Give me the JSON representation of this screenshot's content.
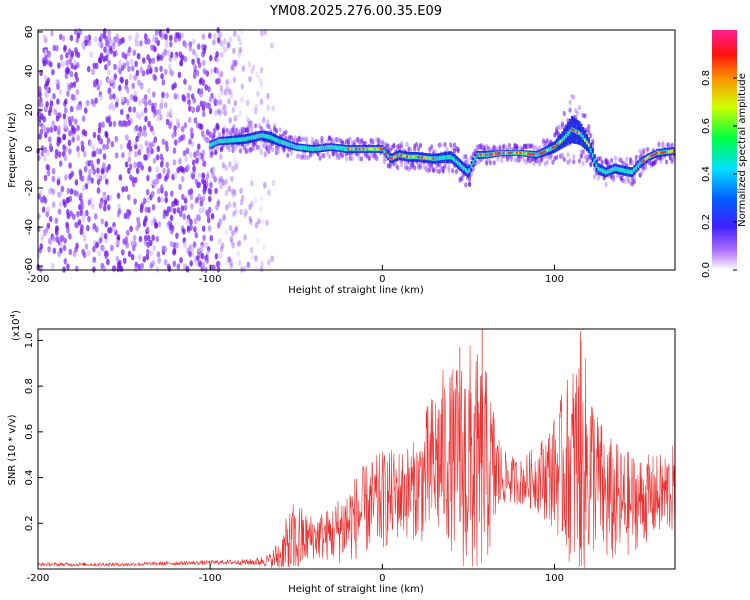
{
  "figure_title": "YM08.2025.276.00.35.E09",
  "chart_data": [
    {
      "type": "heatmap",
      "title": "YM08.2025.276.00.35.E09",
      "xlabel": "Height of straight line (km)",
      "ylabel": "Frequency (Hz)",
      "xlim": [
        -200,
        170
      ],
      "ylim": [
        -62,
        61
      ],
      "xticks": [
        -200,
        -100,
        0,
        100
      ],
      "yticks": [
        60,
        40,
        20,
        0,
        -20,
        -40,
        -60
      ],
      "colorbar": {
        "label": "Normalized spectral amplitude",
        "range": [
          0,
          1
        ],
        "ticks": [
          0.0,
          0.2,
          0.4,
          0.6,
          0.8
        ],
        "colormap": [
          "#ffffff",
          "#8a2be2",
          "#0000ff",
          "#00ffff",
          "#00ff00",
          "#ffff00",
          "#ff0000",
          "#ff1493"
        ]
      },
      "noise_region_x": [
        -200,
        -65
      ],
      "ridge": {
        "x": [
          -100,
          -95,
          -80,
          -70,
          -65,
          -60,
          -50,
          -40,
          -30,
          -20,
          -10,
          0,
          5,
          10,
          15,
          20,
          30,
          40,
          45,
          50,
          55,
          60,
          70,
          80,
          90,
          100,
          105,
          110,
          115,
          120,
          125,
          130,
          135,
          140,
          145,
          150,
          155,
          160,
          170
        ],
        "freq": [
          2,
          4,
          5,
          7,
          6,
          4,
          1,
          0,
          1,
          0,
          0,
          0,
          -5,
          -3,
          -4,
          -4,
          -5,
          -4,
          -8,
          -12,
          -3,
          -3,
          -2,
          -2,
          -3,
          1,
          5,
          10,
          8,
          2,
          -10,
          -12,
          -10,
          -11,
          -12,
          -7,
          -4,
          -2,
          -1
        ],
        "width": [
          4,
          4,
          5,
          5,
          6,
          5,
          4,
          4,
          4,
          4,
          4,
          4,
          5,
          5,
          5,
          5,
          5,
          6,
          6,
          6,
          4,
          4,
          3,
          3,
          4,
          6,
          9,
          14,
          12,
          8,
          6,
          5,
          5,
          5,
          5,
          5,
          4,
          4,
          4
        ]
      }
    },
    {
      "type": "line",
      "xlabel": "Height of straight line (km)",
      "ylabel": "SNR (10 * v/v)",
      "y_multiplier_label": "(x10",
      "y_multiplier_exp": "4",
      "y_multiplier_close": ")",
      "color": "#f03030",
      "xlim": [
        -200,
        170
      ],
      "ylim": [
        0,
        1.05
      ],
      "xticks": [
        -200,
        -100,
        0,
        100
      ],
      "yticks": [
        0.2,
        0.4,
        0.6,
        0.8,
        1.0
      ],
      "series": [
        {
          "name": "SNR",
          "x": [
            -200,
            -150,
            -90,
            -75,
            -65,
            -60,
            -55,
            -50,
            -45,
            -40,
            -30,
            -20,
            -10,
            0,
            10,
            20,
            25,
            30,
            35,
            40,
            45,
            50,
            55,
            60,
            65,
            70,
            80,
            90,
            100,
            105,
            110,
            115,
            120,
            125,
            130,
            140,
            150,
            160,
            170
          ],
          "mean": [
            0.02,
            0.02,
            0.03,
            0.03,
            0.04,
            0.06,
            0.09,
            0.12,
            0.13,
            0.14,
            0.15,
            0.2,
            0.26,
            0.3,
            0.33,
            0.35,
            0.4,
            0.45,
            0.5,
            0.48,
            0.47,
            0.46,
            0.45,
            0.44,
            0.42,
            0.4,
            0.38,
            0.4,
            0.42,
            0.44,
            0.45,
            0.46,
            0.44,
            0.4,
            0.3,
            0.28,
            0.3,
            0.32,
            0.35
          ],
          "amp": [
            0.008,
            0.008,
            0.01,
            0.015,
            0.03,
            0.08,
            0.15,
            0.2,
            0.12,
            0.1,
            0.12,
            0.18,
            0.2,
            0.22,
            0.2,
            0.22,
            0.3,
            0.35,
            0.38,
            0.4,
            0.45,
            0.55,
            0.5,
            0.45,
            0.3,
            0.12,
            0.1,
            0.15,
            0.25,
            0.35,
            0.45,
            0.55,
            0.45,
            0.3,
            0.3,
            0.25,
            0.2,
            0.18,
            0.2
          ]
        }
      ],
      "peaks": [
        {
          "x": 45,
          "y": 0.97
        },
        {
          "x": 58,
          "y": 1.05
        },
        {
          "x": 115,
          "y": 1.04
        }
      ]
    }
  ]
}
